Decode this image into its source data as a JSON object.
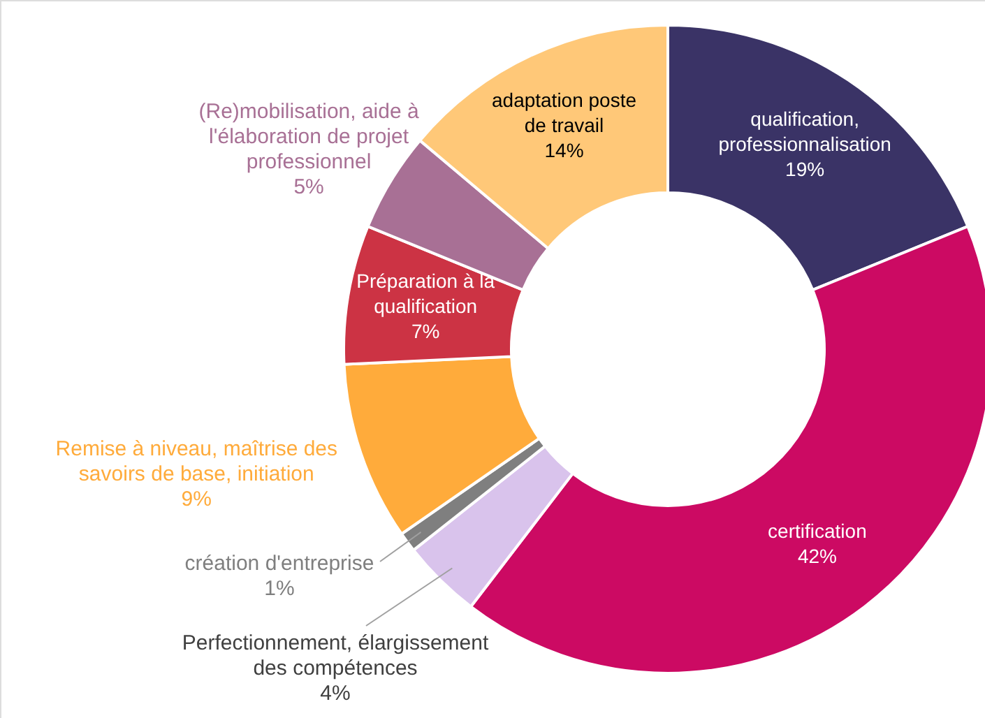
{
  "chart_data": {
    "type": "donut",
    "categories": [
      "qualification, professionnalisation",
      "certification",
      "Perfectionnement, élargissement des compétences",
      "création d'entreprise",
      "Remise à niveau, maîtrise des savoirs de base, initiation",
      "Préparation à la qualification",
      "(Re)mobilisation, aide à l'élaboration de projet professionnel",
      "adaptation poste de travail"
    ],
    "values": [
      19,
      42,
      4,
      1,
      9,
      7,
      5,
      14
    ],
    "value_labels": [
      "19%",
      "42%",
      "4%",
      "1%",
      "9%",
      "7%",
      "5%",
      "14%"
    ],
    "colors": [
      "#3a3366",
      "#cc0a63",
      "#d9c3ec",
      "#7f7f7f",
      "#ffab3b",
      "#cc3344",
      "#a87095",
      "#ffc878"
    ]
  }
}
